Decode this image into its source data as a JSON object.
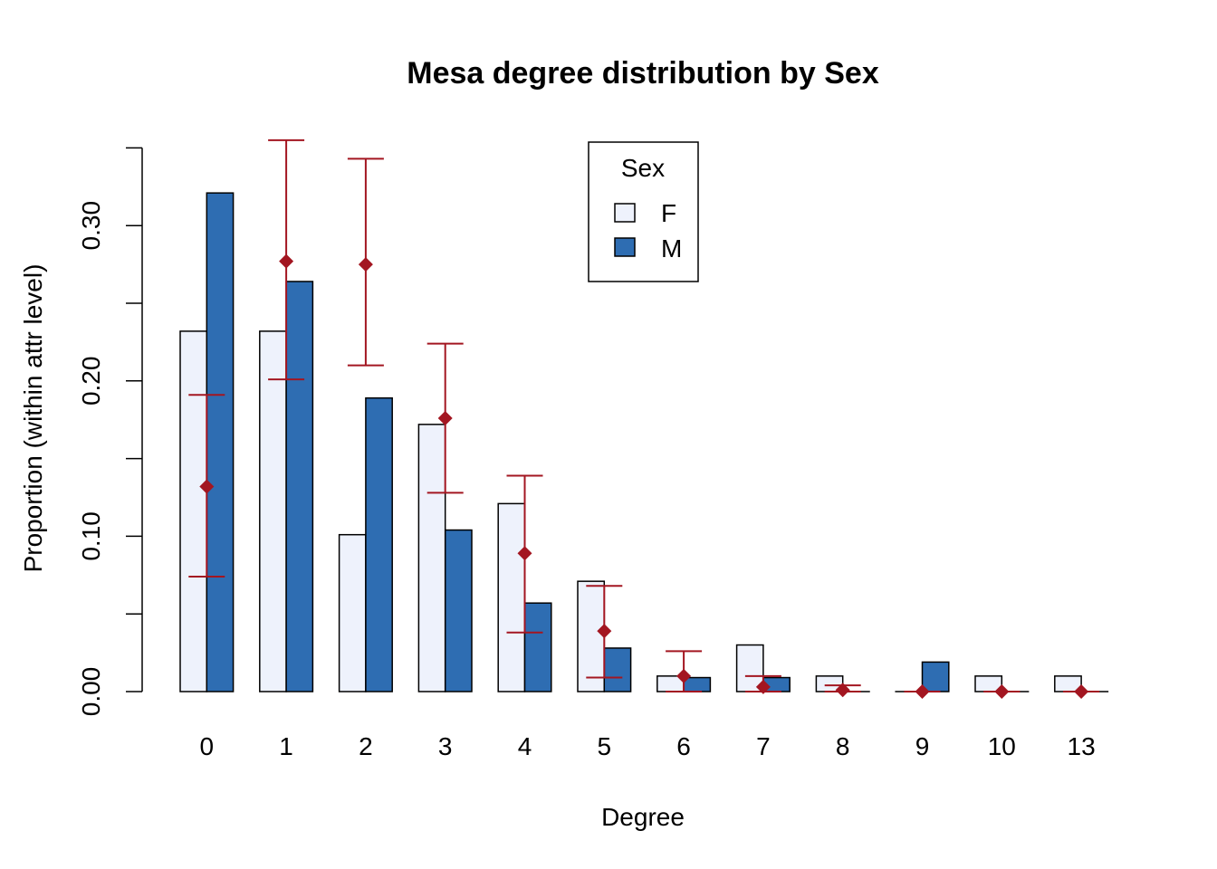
{
  "chart_data": {
    "type": "bar",
    "title": "Mesa degree distribution by Sex",
    "xlabel": "Degree",
    "ylabel": "Proportion (within attr level)",
    "categories": [
      "0",
      "1",
      "2",
      "3",
      "4",
      "5",
      "6",
      "7",
      "8",
      "9",
      "10",
      "13"
    ],
    "ylim": [
      0,
      0.35
    ],
    "yticks": [
      0.0,
      0.05,
      0.1,
      0.15,
      0.2,
      0.25,
      0.3,
      0.35
    ],
    "ytick_labels": [
      "0.00",
      "",
      "0.10",
      "",
      "0.20",
      "",
      "0.30",
      ""
    ],
    "legend": {
      "title": "Sex",
      "position": "top-center"
    },
    "series": [
      {
        "name": "F",
        "color": "#eef2fc",
        "values": [
          0.232,
          0.232,
          0.101,
          0.172,
          0.121,
          0.071,
          0.01,
          0.03,
          0.01,
          0.0,
          0.01,
          0.01
        ]
      },
      {
        "name": "M",
        "color": "#2e6db2",
        "values": [
          0.321,
          0.264,
          0.189,
          0.104,
          0.057,
          0.028,
          0.009,
          0.009,
          0.0,
          0.019,
          0.0,
          0.0
        ]
      }
    ],
    "simulated": {
      "color": "#a31621",
      "mean": [
        0.132,
        0.277,
        0.275,
        0.176,
        0.089,
        0.039,
        0.01,
        0.003,
        0.001,
        0.0,
        0.0,
        0.0
      ],
      "lower": [
        0.074,
        0.201,
        0.21,
        0.128,
        0.038,
        0.009,
        0.0,
        0.0,
        0.0,
        0.0,
        0.0,
        0.0
      ],
      "upper": [
        0.191,
        0.355,
        0.343,
        0.224,
        0.139,
        0.068,
        0.026,
        0.01,
        0.004,
        0.0,
        0.0,
        0.0
      ]
    }
  }
}
